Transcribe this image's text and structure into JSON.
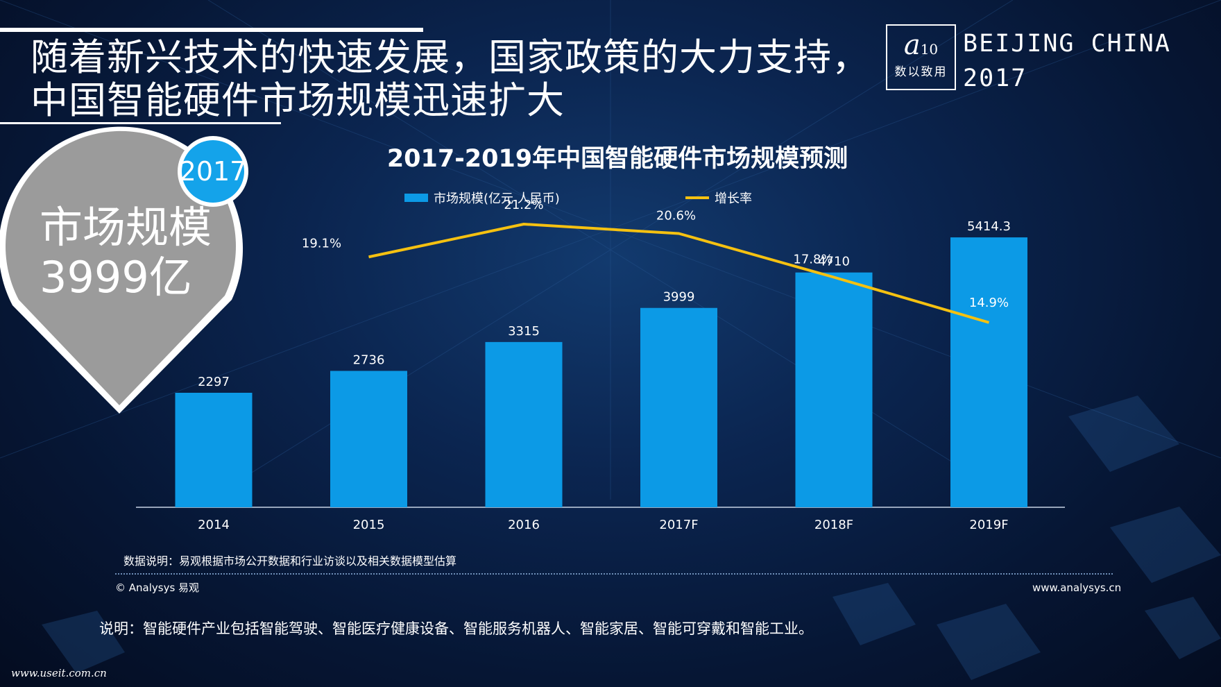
{
  "slide": {
    "title": "随着新兴技术的快速发展，国家政策的大力支持，中国智能硬件市场规模迅速扩大",
    "logo_mark": "a",
    "logo_suffix": "10",
    "logo_text": "数以致用",
    "event_line1": "BEIJING CHINA",
    "event_line2": "2017",
    "pin_badge": "2017",
    "pin_label": "市场规模",
    "pin_value": "3999亿",
    "note_data": "数据说明：易观根据市场公开数据和行业访谈以及相关数据模型估算",
    "copyright": "© Analysys 易观",
    "website": "www.analysys.cn",
    "note_explain": "说明：智能硬件产业包括智能驾驶、智能医疗健康设备、智能服务机器人、智能家居、智能可穿戴和智能工业。",
    "watermark": "www.useit.com.cn"
  },
  "colors": {
    "bar": "#0c9ae6",
    "line": "#f5c111",
    "pin": "#9b9b9b",
    "badge": "#14a3ea"
  },
  "chart_data": {
    "type": "bar",
    "title": "2017-2019年中国智能硬件市场规模预测",
    "categories": [
      "2014",
      "2015",
      "2016",
      "2017F",
      "2018F",
      "2019F"
    ],
    "series": [
      {
        "name": "市场规模(亿元 人民币)",
        "type": "bar",
        "values": [
          2297,
          2736,
          3315,
          3999,
          4710,
          5414.3
        ],
        "labels": [
          "2297",
          "2736",
          "3315",
          "3999",
          "4710",
          "5414.3"
        ]
      },
      {
        "name": "增长率",
        "type": "line",
        "values": [
          null,
          19.1,
          21.2,
          20.6,
          17.8,
          14.9
        ],
        "labels": [
          "",
          "19.1%",
          "21.2%",
          "20.6%",
          "17.8%",
          "14.9%"
        ]
      }
    ],
    "ylim": [
      0,
      6000
    ],
    "y2lim": [
      0,
      40
    ],
    "xlabel": "",
    "ylabel": "",
    "legend": "top-center",
    "grid": false
  }
}
